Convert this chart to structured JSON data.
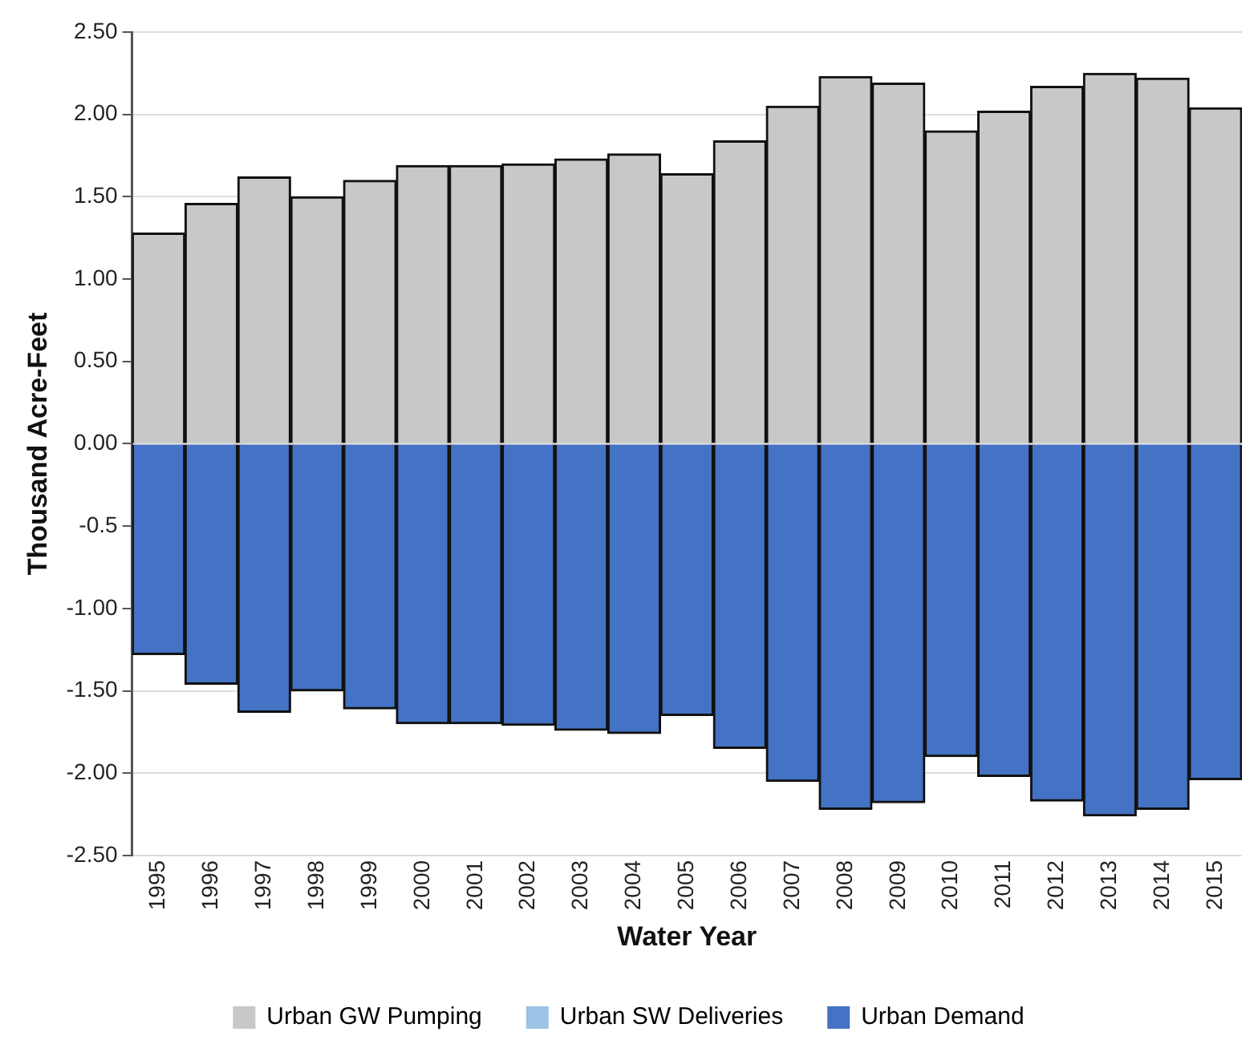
{
  "chart_data": {
    "type": "bar",
    "stacked": true,
    "xlabel": "Water Year",
    "ylabel": "Thousand Acre-Feet",
    "categories": [
      "1995",
      "1996",
      "1997",
      "1998",
      "1999",
      "2000",
      "2001",
      "2002",
      "2003",
      "2004",
      "2005",
      "2006",
      "2007",
      "2008",
      "2009",
      "2010",
      "2011",
      "2012",
      "2013",
      "2014",
      "2015"
    ],
    "series": [
      {
        "name": "Urban GW Pumping",
        "color": "#c8c8c8",
        "values": [
          1.28,
          1.46,
          1.62,
          1.5,
          1.6,
          1.69,
          1.69,
          1.7,
          1.73,
          1.76,
          1.64,
          1.84,
          2.05,
          2.23,
          2.19,
          1.9,
          2.02,
          2.17,
          2.25,
          2.22,
          2.04
        ]
      },
      {
        "name": "Urban SW Deliveries",
        "color": "#9dc3e6",
        "values": [
          0,
          0,
          0,
          0,
          0,
          0,
          0,
          0,
          0,
          0,
          0,
          0,
          0,
          0,
          0,
          0,
          0,
          0,
          0,
          0,
          0
        ]
      },
      {
        "name": "Urban Demand",
        "color": "#4472c4",
        "values": [
          -1.28,
          -1.46,
          -1.63,
          -1.5,
          -1.61,
          -1.7,
          -1.7,
          -1.71,
          -1.74,
          -1.76,
          -1.65,
          -1.85,
          -2.05,
          -2.22,
          -2.18,
          -1.9,
          -2.02,
          -2.17,
          -2.26,
          -2.22,
          -2.04
        ]
      }
    ],
    "ylim": [
      -2.5,
      2.5
    ],
    "yticks": [
      {
        "value": 2.5,
        "label": "2.50"
      },
      {
        "value": 2,
        "label": "2.00"
      },
      {
        "value": 1.5,
        "label": "1.50"
      },
      {
        "value": 1,
        "label": "1.00"
      },
      {
        "value": 0.5,
        "label": "0.50"
      },
      {
        "value": 0,
        "label": "0.00"
      },
      {
        "value": -0.5,
        "label": "-0.5"
      },
      {
        "value": -1,
        "label": "-1.00"
      },
      {
        "value": -1.5,
        "label": "-1.50"
      },
      {
        "value": -2,
        "label": "-2.00"
      },
      {
        "value": -2.5,
        "label": "-2.50"
      }
    ],
    "grid": "y",
    "legend": "bottom"
  }
}
